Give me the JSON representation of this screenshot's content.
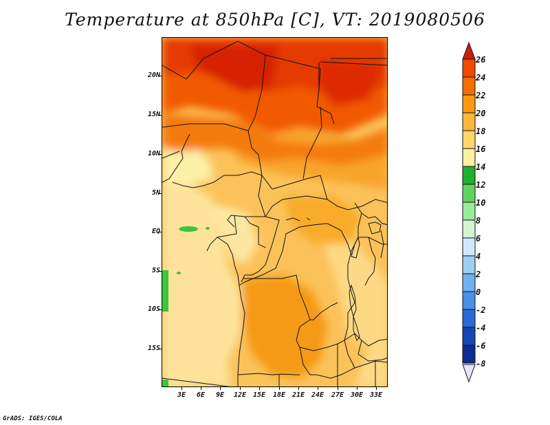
{
  "title": "Temperature at 850hPa [C], VT: 2019080506",
  "credit": "GrADS: IGES/COLA",
  "map": {
    "lat_labels": [
      "20N",
      "15N",
      "10N",
      "5N",
      "EQ",
      "5S",
      "10S",
      "15S"
    ],
    "lon_labels": [
      "3E",
      "6E",
      "9E",
      "12E",
      "15E",
      "18E",
      "21E",
      "24E",
      "27E",
      "30E",
      "33E"
    ]
  },
  "colorbar": {
    "labels": [
      "26",
      "24",
      "22",
      "20",
      "18",
      "16",
      "14",
      "12",
      "10",
      "8",
      "6",
      "4",
      "2",
      "0",
      "-2",
      "-4",
      "-6",
      "-8"
    ],
    "colors": [
      "#d92a00",
      "#f04a00",
      "#f46e00",
      "#f79a10",
      "#fbb73a",
      "#fdd66c",
      "#fdf0a0",
      "#20b030",
      "#5fd45f",
      "#98ec98",
      "#d2f6d2",
      "#cfe8f9",
      "#9cd0f5",
      "#6eb2ef",
      "#4a90e4",
      "#2a6ad4",
      "#1446b4",
      "#0c2c90",
      "#07166a"
    ],
    "top_arrow_color": "#d01a08",
    "bottom_arrow_color": "#e4e6f6"
  }
}
